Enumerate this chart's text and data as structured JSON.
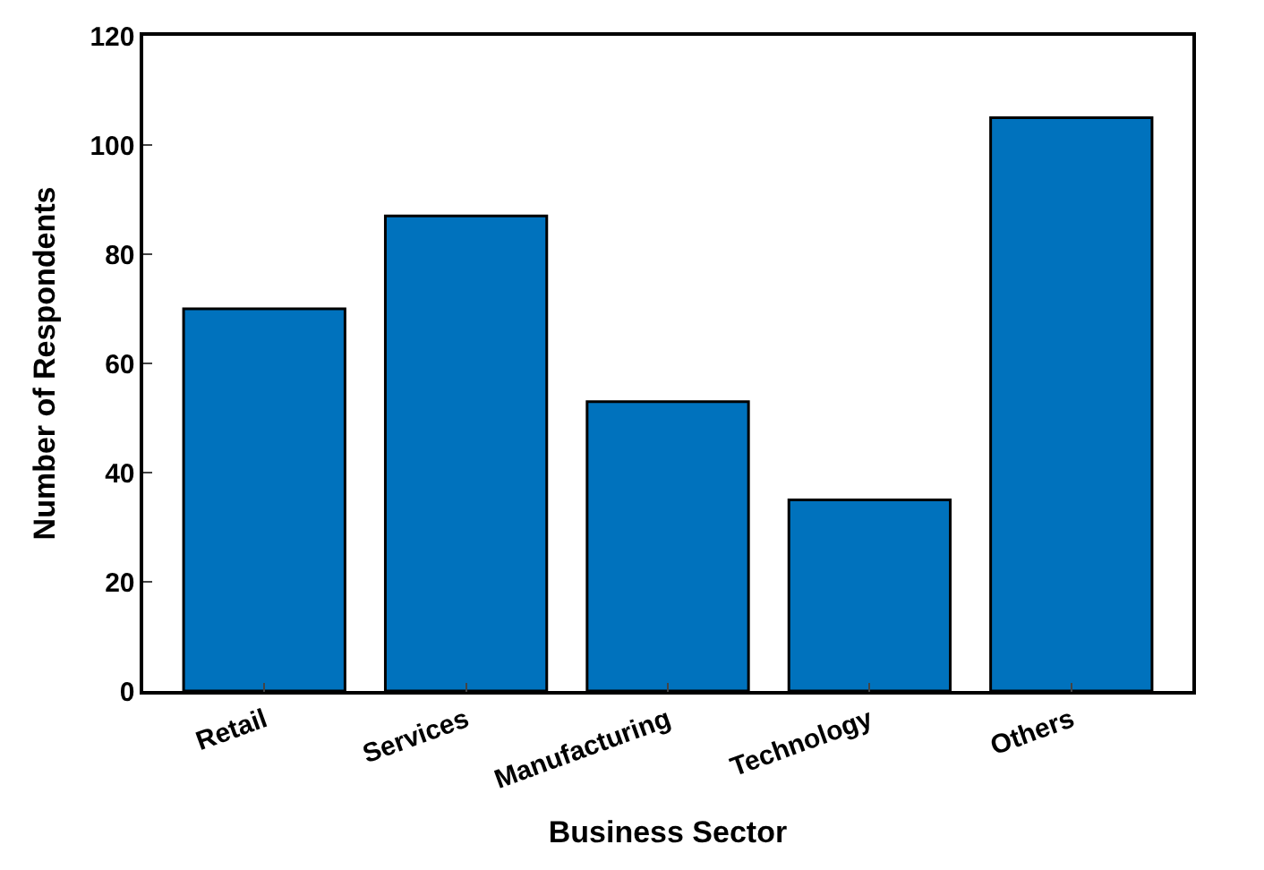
{
  "chart_data": {
    "type": "bar",
    "xlabel": "Business Sector",
    "ylabel": "Number of Respondents",
    "categories": [
      "Retail",
      "Services",
      "Manufacturing",
      "Technology",
      "Others"
    ],
    "values": [
      70,
      87,
      53,
      35,
      105
    ],
    "color": "#0072bd",
    "ylim": [
      0,
      120
    ],
    "yticks": [
      0,
      20,
      40,
      60,
      80,
      100,
      120
    ],
    "legend": false
  }
}
